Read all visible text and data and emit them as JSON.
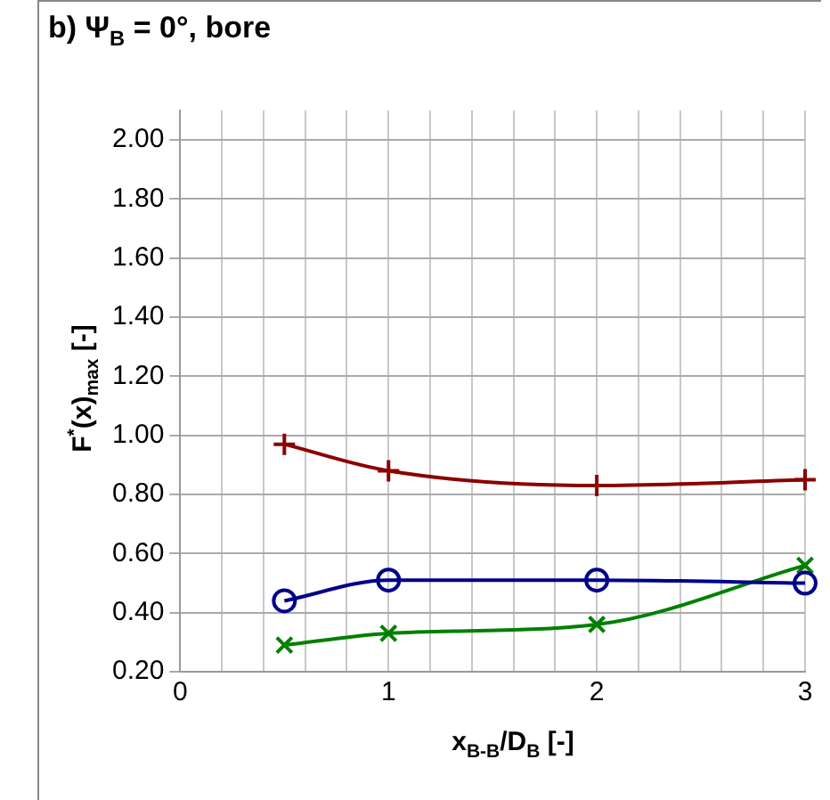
{
  "chart_data": {
    "type": "line",
    "title": "b) Ψ$_{B}$ = 0°, bore",
    "xlabel": "x$_{B-B}$/D$_{B}$ [-]",
    "ylabel": "F$^{*}$(x)$_{max}$ [-]",
    "x": [
      0.5,
      1,
      2,
      3
    ],
    "series": [
      {
        "color": "#8b0000",
        "marker": "cross",
        "values": [
          0.97,
          0.88,
          0.83,
          0.85
        ]
      },
      {
        "color": "#00008b",
        "marker": "circle",
        "values": [
          0.44,
          0.51,
          0.51,
          0.5
        ]
      },
      {
        "color": "#008000",
        "marker": "x",
        "values": [
          0.29,
          0.33,
          0.36,
          0.56
        ]
      }
    ],
    "xlim": [
      0,
      3
    ],
    "xticks": [
      0,
      {
        "value": 0.2,
        "label": null
      },
      {
        "value": 0.4,
        "label": null
      },
      {
        "value": 0.6,
        "label": null
      },
      {
        "value": 0.8,
        "label": null
      },
      1,
      {
        "value": 1.2,
        "label": null
      },
      {
        "value": 1.4,
        "label": null
      },
      {
        "value": 1.6,
        "label": null
      },
      {
        "value": 1.8,
        "label": null
      },
      2,
      {
        "value": 2.2,
        "label": null
      },
      {
        "value": 2.4,
        "label": null
      },
      {
        "value": 2.6,
        "label": null
      },
      {
        "value": 2.8,
        "label": null
      },
      3
    ],
    "ylim": [
      0.2,
      2.1
    ],
    "yticks": [
      {
        "value": 0.2,
        "label": "0.20"
      },
      {
        "value": 0.4,
        "label": "0.40"
      },
      {
        "value": 0.6,
        "label": "0.60"
      },
      {
        "value": 0.8,
        "label": "0.80"
      },
      {
        "value": 1,
        "label": "1.00"
      },
      {
        "value": 1.2,
        "label": "1.20"
      },
      {
        "value": 1.4,
        "label": "1.40"
      },
      {
        "value": 1.6,
        "label": "1.60"
      },
      {
        "value": 1.8,
        "label": "1.80"
      },
      {
        "value": 2,
        "label": "2.00"
      }
    ],
    "grid": true,
    "legend": false
  }
}
